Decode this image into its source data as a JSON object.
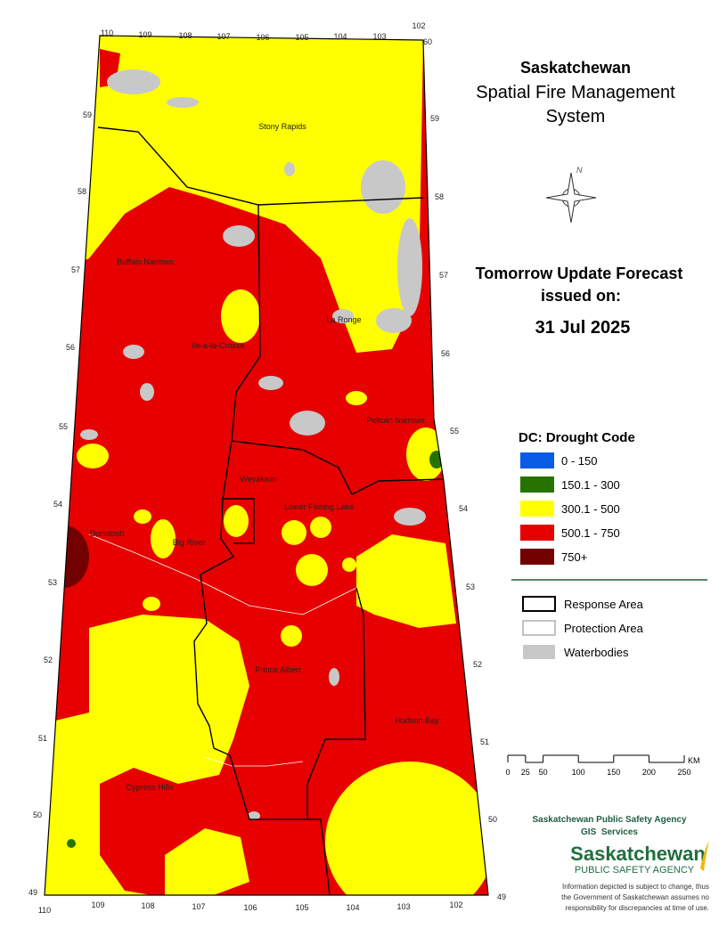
{
  "header": {
    "title": "Saskatchewan",
    "subtitle_lines": [
      "Spatial Fire Management",
      "System"
    ]
  },
  "forecast": {
    "heading_lines": [
      "Tomorrow Update Forecast",
      "issued on:"
    ],
    "date": "31 Jul 2025"
  },
  "legend": {
    "title": "DC: Drought Code",
    "classes": [
      {
        "label": "0 - 150",
        "color": "#0a5ce6"
      },
      {
        "label": "150.1 - 300",
        "color": "#267300"
      },
      {
        "label": "300.1 - 500",
        "color": "#ffff00"
      },
      {
        "label": "500.1 - 750",
        "color": "#e60000"
      },
      {
        "label": "750+",
        "color": "#730000"
      }
    ],
    "boundaries": [
      {
        "label": "Response Area"
      },
      {
        "label": "Protection Area"
      },
      {
        "label": "Waterbodies",
        "color": "#c8c8c8"
      }
    ]
  },
  "scale_bar": {
    "ticks": [
      0,
      25,
      50,
      100,
      150,
      200,
      250
    ],
    "unit": "KM"
  },
  "map": {
    "places": [
      "Stony Rapids",
      "Buffalo Narrows",
      "La Ronge",
      "Ile-a-la-Crosse",
      "Pelican Narrows",
      "Weyakwin",
      "Lower Fishing Lake",
      "Dorintosh",
      "Big River",
      "Prince Albert",
      "Hudson Bay",
      "Cypress Hills"
    ],
    "graticule": {
      "top": [
        110,
        109,
        108,
        107,
        106,
        105,
        104,
        103,
        102
      ],
      "top_right_lat": 60,
      "bottom": [
        110,
        109,
        108,
        107,
        106,
        105,
        104,
        103,
        102
      ],
      "left": [
        59,
        58,
        57,
        56,
        55,
        54,
        53,
        52,
        51,
        50,
        49
      ],
      "right": [
        59,
        58,
        57,
        56,
        55,
        54,
        53,
        52,
        51,
        50,
        49
      ]
    }
  },
  "credits": {
    "agency": "Saskatchewan Public Safety Agency",
    "unit": "GIS  Services",
    "logo_name": "Saskatchewan",
    "logo_sub": "PUBLIC SAFETY AGENCY",
    "disclaimer": [
      "Information depicted is subject to change, thus",
      "the Government of Saskatchewan assumes no",
      "responsibility for discrepancies at time of use."
    ]
  }
}
